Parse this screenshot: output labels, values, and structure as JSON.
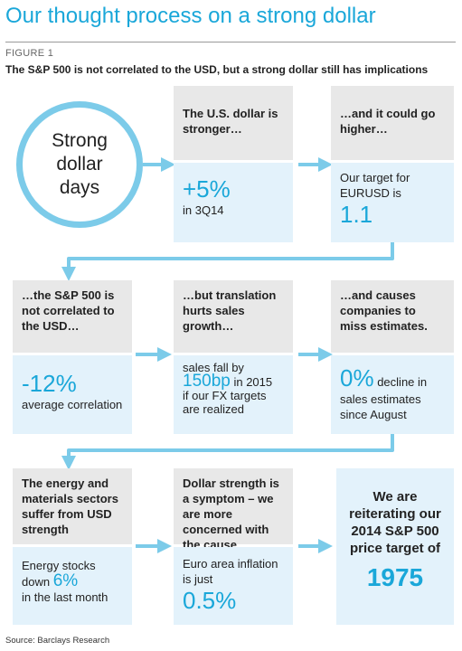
{
  "header": {
    "title": "Our thought process on a strong dollar",
    "figure_label": "FIGURE 1",
    "subtitle": "The S&P 500 is not correlated to the USD, but a strong dollar still has implications"
  },
  "start": {
    "lines": [
      "Strong",
      "dollar",
      "days"
    ]
  },
  "row1": {
    "box2": {
      "header": "The U.S. dollar is stronger…",
      "big": "+5%",
      "small": "in 3Q14"
    },
    "box3": {
      "header": "…and it could go higher…",
      "text": "Our target for EURUSD is",
      "big": "1.1"
    }
  },
  "row2": {
    "box1": {
      "header": "…the S&P 500 is not correlated to the USD…",
      "big": "-12%",
      "small": "average correlation"
    },
    "box2": {
      "header": "…but translation hurts sales growth…",
      "pre": "sales fall by",
      "mid": "150bp",
      "post1": "in 2015",
      "post2": "if our FX targets are realized"
    },
    "box3": {
      "header": "…and causes companies to miss estimates.",
      "mid": "0%",
      "post1": "decline in",
      "post2": "sales estimates since August"
    }
  },
  "row3": {
    "box1": {
      "header": "The energy and materials sectors suffer from USD strength",
      "pre": "Energy stocks",
      "pre2": "down",
      "mid": "6%",
      "post": "in the last month"
    },
    "box2": {
      "header": "Dollar strength is a symptom – we are more concerned with the cause",
      "text": "Euro area inflation is just",
      "big": "0.5%"
    },
    "final": {
      "text": "We are reiterating our 2014 S&P 500 price target of",
      "big": "1975"
    }
  },
  "footer": {
    "source": "Source: Barclays Research"
  },
  "colors": {
    "accent": "#1aa7d9",
    "arrow": "#7ccbe9",
    "grey_box": "#e8e8e8",
    "blue_box": "#e3f2fb"
  }
}
